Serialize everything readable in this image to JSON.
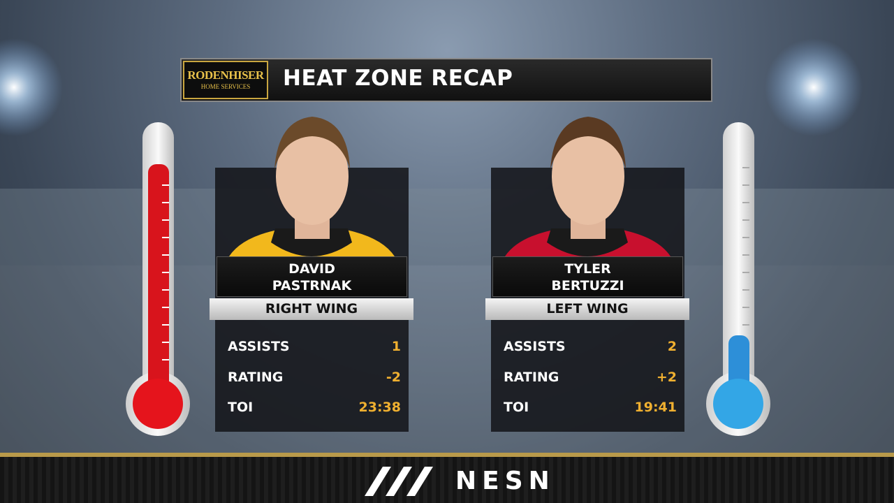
{
  "header": {
    "sponsor": {
      "name": "RODENHISER",
      "tagline": "HOME SERVICES"
    },
    "title": "HEAT ZONE RECAP"
  },
  "players": [
    {
      "first_name": "DAVID",
      "last_name": "PASTRNAK",
      "position": "RIGHT WING",
      "stats": [
        {
          "label": "ASSISTS",
          "value": "1"
        },
        {
          "label": "RATING",
          "value": "-2"
        },
        {
          "label": "TOI",
          "value": "23:38"
        }
      ]
    },
    {
      "first_name": "TYLER",
      "last_name": "BERTUZZI",
      "position": "LEFT WING",
      "stats": [
        {
          "label": "ASSISTS",
          "value": "2"
        },
        {
          "label": "RATING",
          "value": "+2"
        },
        {
          "label": "TOI",
          "value": "19:41"
        }
      ]
    }
  ],
  "footer": {
    "brand": "NESN"
  }
}
